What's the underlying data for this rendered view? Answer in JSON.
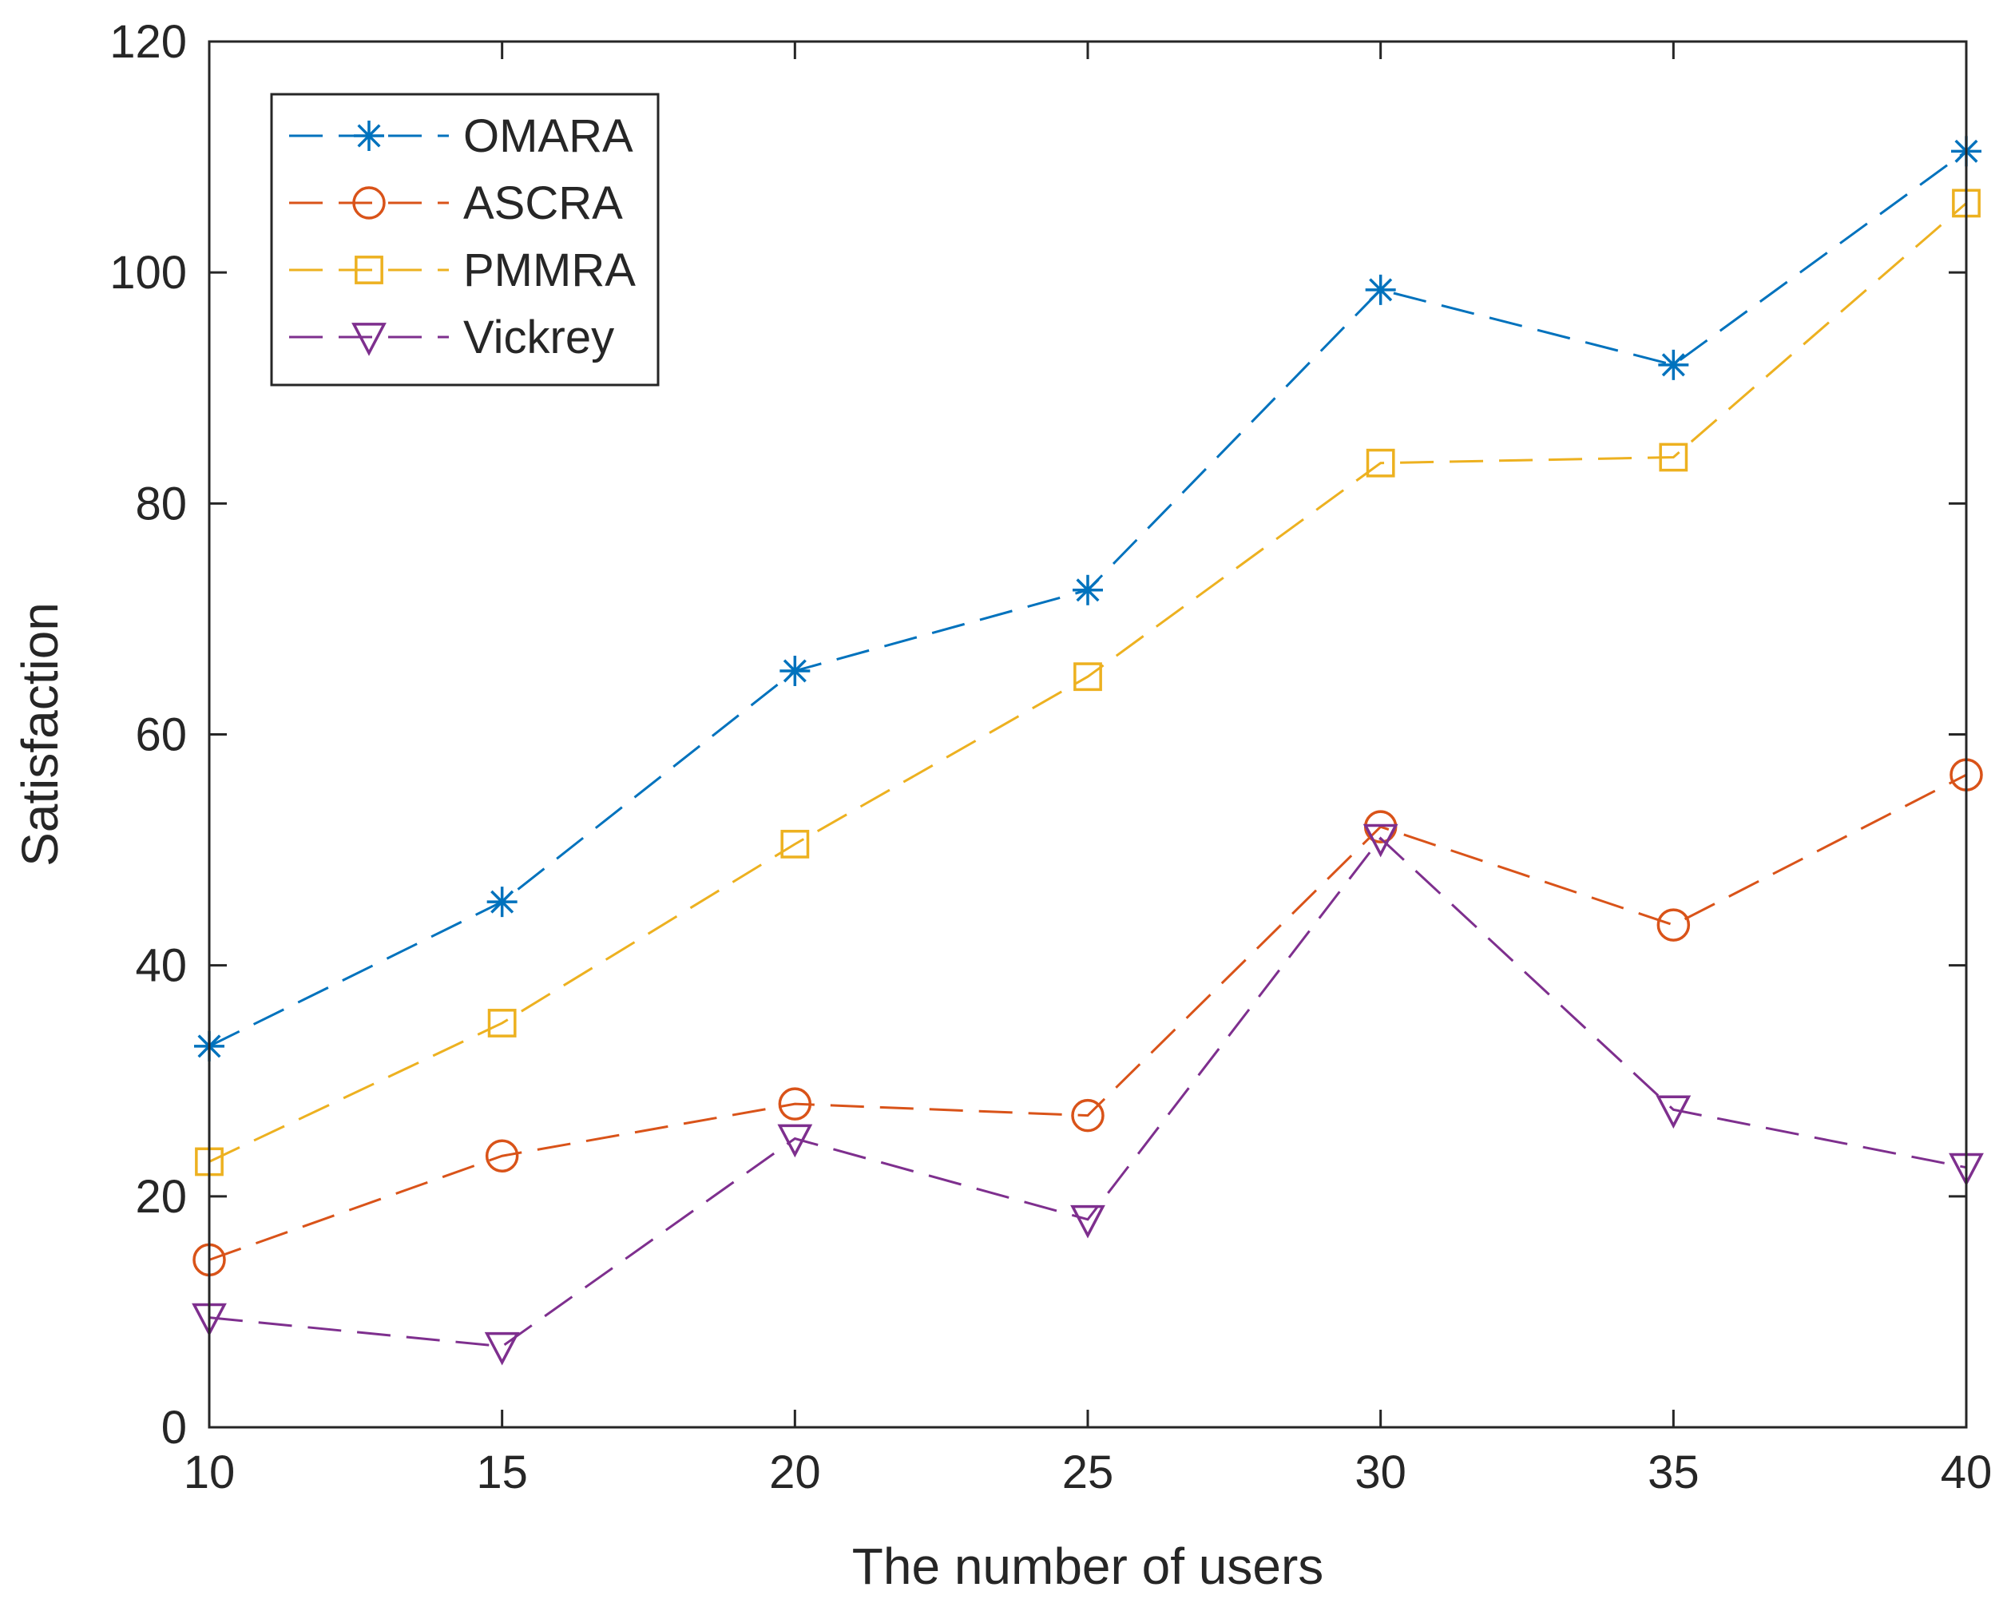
{
  "chart_data": {
    "type": "line",
    "title": "",
    "xlabel": "The number of users",
    "ylabel": "Satisfaction",
    "x": [
      10,
      15,
      20,
      25,
      30,
      35,
      40
    ],
    "xlim": [
      10,
      40
    ],
    "ylim": [
      0,
      120
    ],
    "xticks": [
      10,
      15,
      20,
      25,
      30,
      35,
      40
    ],
    "yticks": [
      0,
      20,
      40,
      60,
      80,
      100,
      120
    ],
    "grid": false,
    "legend_position": "top-left",
    "series": [
      {
        "name": "OMARA",
        "marker": "asterisk",
        "color": "#0072BD",
        "values": [
          33,
          45.5,
          65.5,
          72.5,
          98.5,
          92,
          110.5
        ]
      },
      {
        "name": "ASCRA",
        "marker": "circle",
        "color": "#D95319",
        "values": [
          14.5,
          23.5,
          28,
          27,
          52,
          43.5,
          56.5
        ]
      },
      {
        "name": "PMMRA",
        "marker": "square",
        "color": "#EDB120",
        "values": [
          23,
          35,
          50.5,
          65,
          83.5,
          84,
          106
        ]
      },
      {
        "name": "Vickrey",
        "marker": "triangle-down",
        "color": "#7E2F8E",
        "values": [
          9.5,
          7,
          25,
          18,
          51,
          27.5,
          22.5
        ]
      }
    ]
  }
}
